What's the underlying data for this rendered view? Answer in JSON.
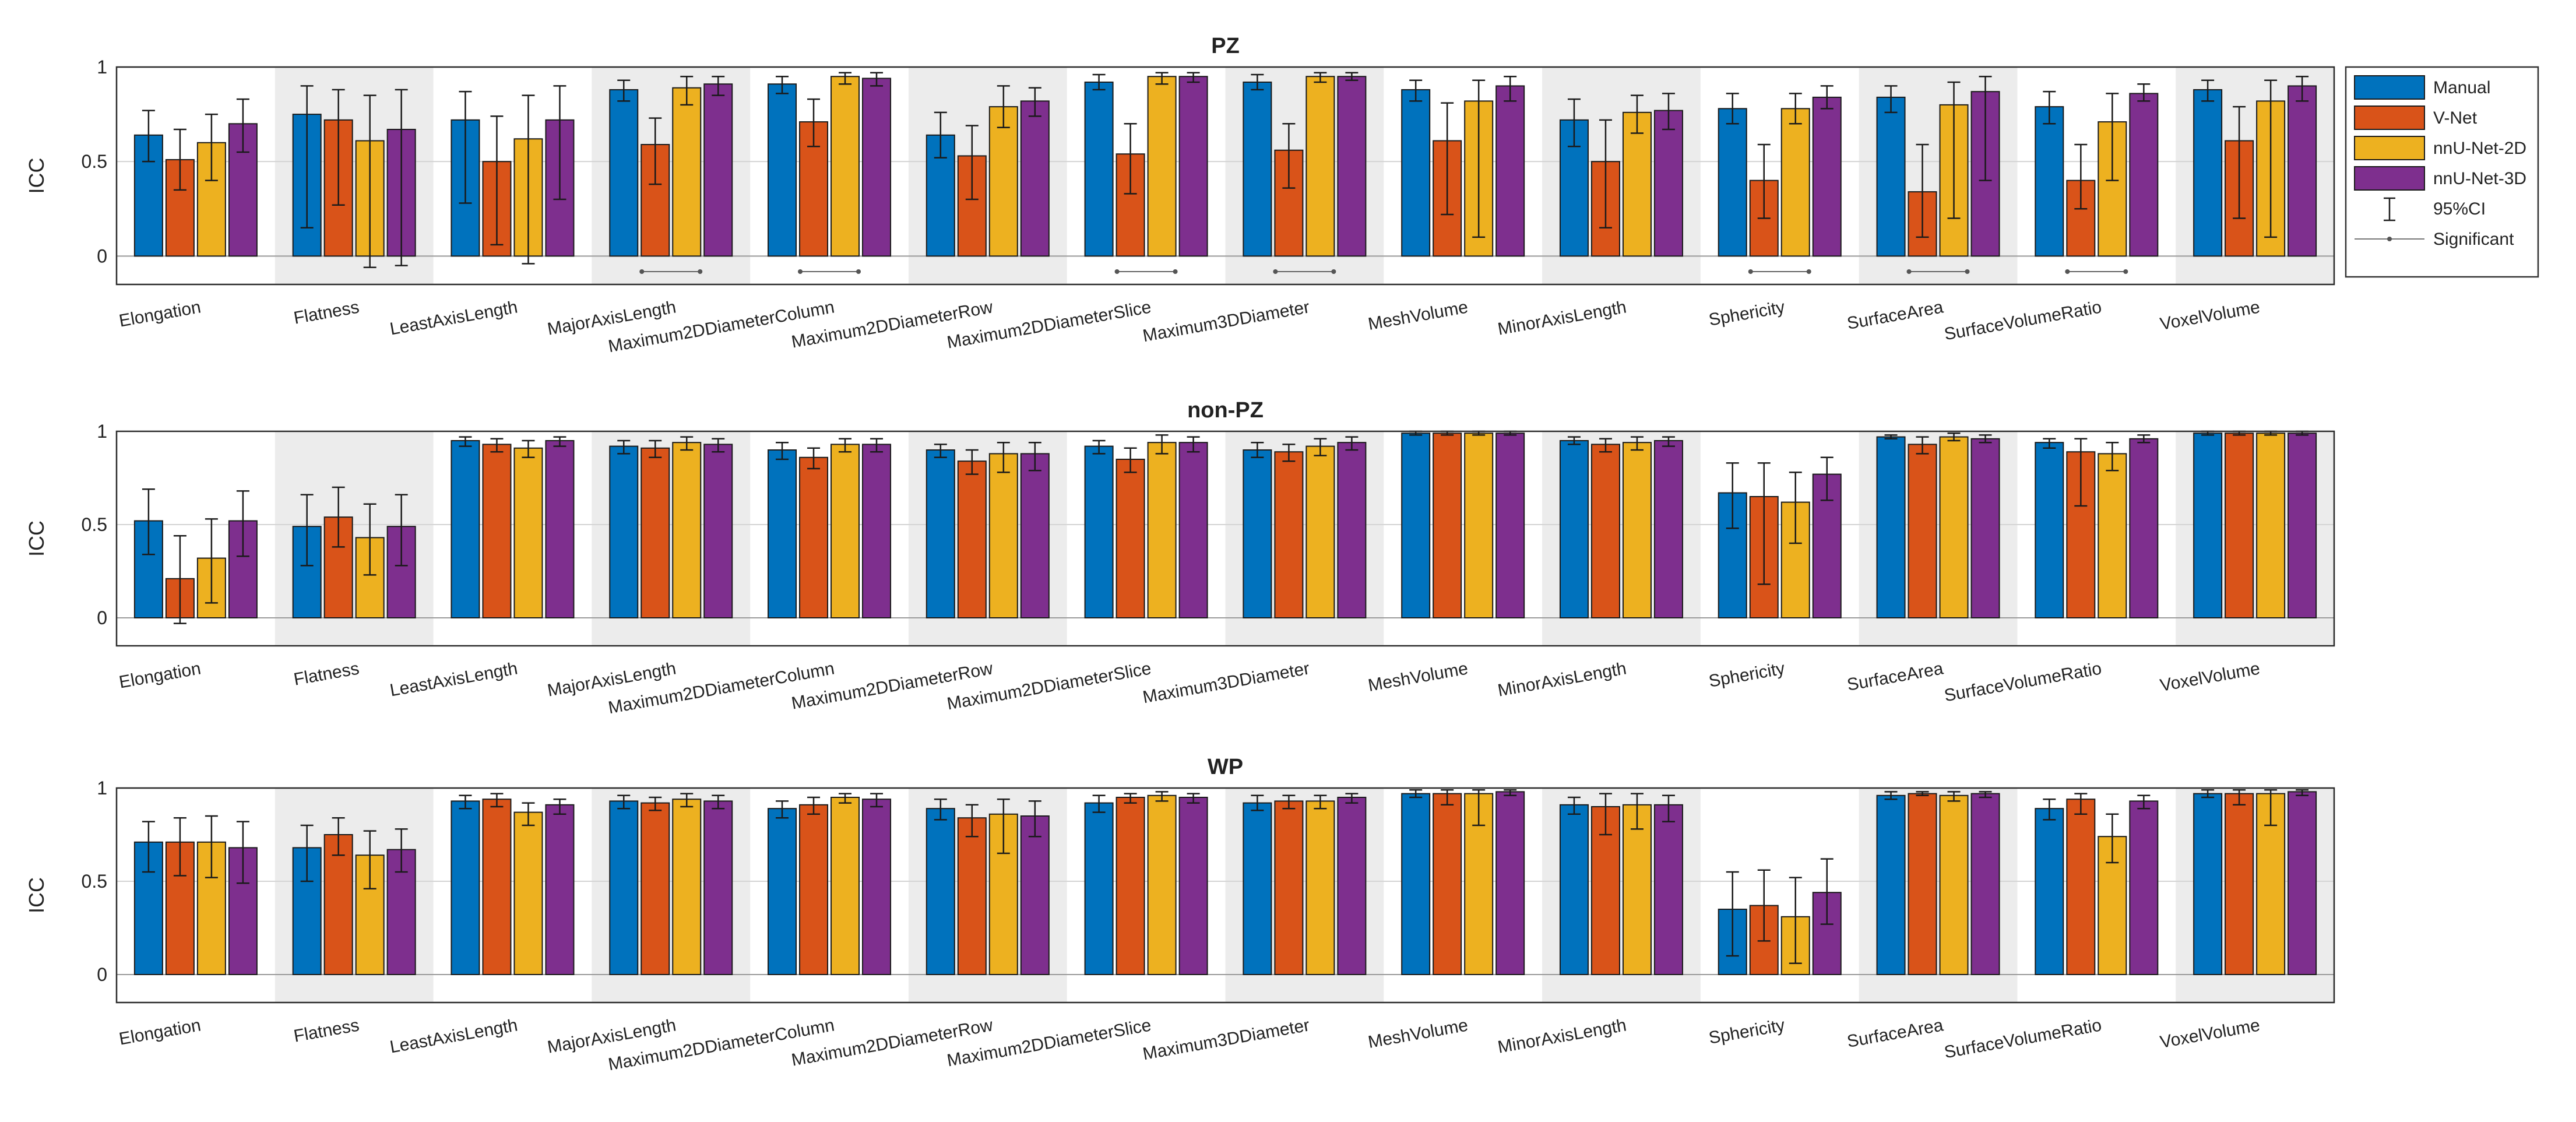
{
  "chart_data": [
    {
      "type": "bar",
      "title": "PZ",
      "ylabel": "ICC",
      "ylim": [
        -0.15,
        1
      ],
      "yticks": [
        "0",
        "0.5",
        "1"
      ],
      "categories": [
        "Elongation",
        "Flatness",
        "LeastAxisLength",
        "MajorAxisLength",
        "Maximum2DDiameterColumn",
        "Maximum2DDiameterRow",
        "Maximum2DDiameterSlice",
        "Maximum3DDiameter",
        "MeshVolume",
        "MinorAxisLength",
        "Sphericity",
        "SurfaceArea",
        "SurfaceVolumeRatio",
        "VoxelVolume"
      ],
      "series": [
        {
          "name": "Manual",
          "values": [
            0.64,
            0.75,
            0.72,
            0.88,
            0.91,
            0.64,
            0.92,
            0.92,
            0.88,
            0.72,
            0.78,
            0.84,
            0.79,
            0.88
          ],
          "ci_low": [
            0.5,
            0.15,
            0.28,
            0.82,
            0.86,
            0.52,
            0.88,
            0.88,
            0.82,
            0.58,
            0.7,
            0.76,
            0.7,
            0.82
          ],
          "ci_high": [
            0.77,
            0.9,
            0.87,
            0.93,
            0.95,
            0.76,
            0.96,
            0.96,
            0.93,
            0.83,
            0.86,
            0.9,
            0.87,
            0.93
          ]
        },
        {
          "name": "V-Net",
          "values": [
            0.51,
            0.72,
            0.5,
            0.59,
            0.71,
            0.53,
            0.54,
            0.56,
            0.61,
            0.5,
            0.4,
            0.34,
            0.4,
            0.61
          ],
          "ci_low": [
            0.35,
            0.27,
            0.06,
            0.38,
            0.58,
            0.3,
            0.33,
            0.36,
            0.22,
            0.15,
            0.2,
            0.1,
            0.25,
            0.2
          ],
          "ci_high": [
            0.67,
            0.88,
            0.74,
            0.73,
            0.83,
            0.69,
            0.7,
            0.7,
            0.81,
            0.72,
            0.59,
            0.59,
            0.59,
            0.79
          ]
        },
        {
          "name": "nnU-Net-2D",
          "values": [
            0.6,
            0.61,
            0.62,
            0.89,
            0.95,
            0.79,
            0.95,
            0.95,
            0.82,
            0.76,
            0.78,
            0.8,
            0.71,
            0.82
          ],
          "ci_low": [
            0.4,
            -0.06,
            -0.04,
            0.8,
            0.91,
            0.68,
            0.91,
            0.92,
            0.1,
            0.65,
            0.7,
            0.2,
            0.4,
            0.1
          ],
          "ci_high": [
            0.75,
            0.85,
            0.85,
            0.95,
            0.97,
            0.9,
            0.97,
            0.97,
            0.93,
            0.85,
            0.86,
            0.92,
            0.86,
            0.93
          ]
        },
        {
          "name": "nnU-Net-3D",
          "values": [
            0.7,
            0.67,
            0.72,
            0.91,
            0.94,
            0.82,
            0.95,
            0.95,
            0.9,
            0.77,
            0.84,
            0.87,
            0.86,
            0.9
          ],
          "ci_low": [
            0.55,
            -0.05,
            0.3,
            0.85,
            0.9,
            0.74,
            0.92,
            0.93,
            0.82,
            0.67,
            0.78,
            0.4,
            0.82,
            0.82
          ],
          "ci_high": [
            0.83,
            0.88,
            0.9,
            0.95,
            0.97,
            0.89,
            0.97,
            0.97,
            0.95,
            0.86,
            0.9,
            0.95,
            0.91,
            0.95
          ]
        }
      ],
      "significant": [
        3,
        4,
        6,
        7,
        10,
        11,
        12
      ]
    },
    {
      "type": "bar",
      "title": "non-PZ",
      "ylabel": "ICC",
      "ylim": [
        -0.15,
        1
      ],
      "yticks": [
        "0",
        "0.5",
        "1"
      ],
      "categories": [
        "Elongation",
        "Flatness",
        "LeastAxisLength",
        "MajorAxisLength",
        "Maximum2DDiameterColumn",
        "Maximum2DDiameterRow",
        "Maximum2DDiameterSlice",
        "Maximum3DDiameter",
        "MeshVolume",
        "MinorAxisLength",
        "Sphericity",
        "SurfaceArea",
        "SurfaceVolumeRatio",
        "VoxelVolume"
      ],
      "series": [
        {
          "name": "Manual",
          "values": [
            0.52,
            0.49,
            0.95,
            0.92,
            0.9,
            0.9,
            0.92,
            0.9,
            0.99,
            0.95,
            0.67,
            0.97,
            0.94,
            0.99
          ],
          "ci_low": [
            0.34,
            0.28,
            0.92,
            0.88,
            0.85,
            0.86,
            0.88,
            0.86,
            0.98,
            0.93,
            0.48,
            0.96,
            0.91,
            0.98
          ],
          "ci_high": [
            0.69,
            0.66,
            0.97,
            0.95,
            0.94,
            0.93,
            0.95,
            0.94,
            1.0,
            0.97,
            0.83,
            0.98,
            0.96,
            1.0
          ]
        },
        {
          "name": "V-Net",
          "values": [
            0.21,
            0.54,
            0.93,
            0.91,
            0.86,
            0.84,
            0.85,
            0.89,
            0.99,
            0.93,
            0.65,
            0.93,
            0.89,
            0.99
          ],
          "ci_low": [
            -0.03,
            0.38,
            0.89,
            0.86,
            0.8,
            0.77,
            0.78,
            0.84,
            0.98,
            0.89,
            0.18,
            0.88,
            0.6,
            0.98
          ],
          "ci_high": [
            0.44,
            0.7,
            0.96,
            0.95,
            0.91,
            0.9,
            0.91,
            0.93,
            1.0,
            0.96,
            0.83,
            0.97,
            0.96,
            1.0
          ]
        },
        {
          "name": "nnU-Net-2D",
          "values": [
            0.32,
            0.43,
            0.91,
            0.94,
            0.93,
            0.88,
            0.94,
            0.92,
            0.99,
            0.94,
            0.62,
            0.97,
            0.88,
            0.99
          ],
          "ci_low": [
            0.08,
            0.23,
            0.86,
            0.9,
            0.89,
            0.78,
            0.88,
            0.87,
            0.98,
            0.9,
            0.4,
            0.95,
            0.79,
            0.98
          ],
          "ci_high": [
            0.53,
            0.61,
            0.95,
            0.97,
            0.96,
            0.94,
            0.98,
            0.96,
            1.0,
            0.97,
            0.78,
            0.99,
            0.94,
            1.0
          ]
        },
        {
          "name": "nnU-Net-3D",
          "values": [
            0.52,
            0.49,
            0.95,
            0.93,
            0.93,
            0.88,
            0.94,
            0.94,
            0.99,
            0.95,
            0.77,
            0.96,
            0.96,
            0.99
          ],
          "ci_low": [
            0.33,
            0.28,
            0.92,
            0.89,
            0.89,
            0.79,
            0.89,
            0.9,
            0.98,
            0.92,
            0.63,
            0.94,
            0.94,
            0.98
          ],
          "ci_high": [
            0.68,
            0.66,
            0.97,
            0.96,
            0.96,
            0.94,
            0.97,
            0.97,
            1.0,
            0.97,
            0.86,
            0.98,
            0.98,
            1.0
          ]
        }
      ],
      "significant": []
    },
    {
      "type": "bar",
      "title": "WP",
      "ylabel": "ICC",
      "ylim": [
        -0.15,
        1
      ],
      "yticks": [
        "0",
        "0.5",
        "1"
      ],
      "categories": [
        "Elongation",
        "Flatness",
        "LeastAxisLength",
        "MajorAxisLength",
        "Maximum2DDiameterColumn",
        "Maximum2DDiameterRow",
        "Maximum2DDiameterSlice",
        "Maximum3DDiameter",
        "MeshVolume",
        "MinorAxisLength",
        "Sphericity",
        "SurfaceArea",
        "SurfaceVolumeRatio",
        "VoxelVolume"
      ],
      "series": [
        {
          "name": "Manual",
          "values": [
            0.71,
            0.68,
            0.93,
            0.93,
            0.89,
            0.89,
            0.92,
            0.92,
            0.97,
            0.91,
            0.35,
            0.96,
            0.89,
            0.97
          ],
          "ci_low": [
            0.55,
            0.5,
            0.89,
            0.89,
            0.84,
            0.83,
            0.87,
            0.88,
            0.95,
            0.86,
            0.1,
            0.94,
            0.83,
            0.95
          ],
          "ci_high": [
            0.82,
            0.8,
            0.96,
            0.96,
            0.93,
            0.94,
            0.96,
            0.96,
            0.99,
            0.95,
            0.55,
            0.98,
            0.94,
            0.99
          ]
        },
        {
          "name": "V-Net",
          "values": [
            0.71,
            0.75,
            0.94,
            0.92,
            0.91,
            0.84,
            0.95,
            0.93,
            0.97,
            0.9,
            0.37,
            0.97,
            0.94,
            0.97
          ],
          "ci_low": [
            0.53,
            0.64,
            0.9,
            0.88,
            0.86,
            0.74,
            0.92,
            0.89,
            0.91,
            0.75,
            0.18,
            0.96,
            0.86,
            0.91
          ],
          "ci_high": [
            0.84,
            0.84,
            0.97,
            0.95,
            0.95,
            0.91,
            0.97,
            0.96,
            0.99,
            0.97,
            0.56,
            0.98,
            0.97,
            0.99
          ]
        },
        {
          "name": "nnU-Net-2D",
          "values": [
            0.71,
            0.64,
            0.87,
            0.94,
            0.95,
            0.86,
            0.96,
            0.93,
            0.97,
            0.91,
            0.31,
            0.96,
            0.74,
            0.97
          ],
          "ci_low": [
            0.52,
            0.46,
            0.8,
            0.9,
            0.92,
            0.65,
            0.93,
            0.89,
            0.8,
            0.78,
            0.06,
            0.93,
            0.6,
            0.8
          ],
          "ci_high": [
            0.85,
            0.77,
            0.92,
            0.97,
            0.97,
            0.94,
            0.98,
            0.96,
            0.99,
            0.97,
            0.52,
            0.98,
            0.86,
            0.99
          ]
        },
        {
          "name": "nnU-Net-3D",
          "values": [
            0.68,
            0.67,
            0.91,
            0.93,
            0.94,
            0.85,
            0.95,
            0.95,
            0.98,
            0.91,
            0.44,
            0.97,
            0.93,
            0.98
          ],
          "ci_low": [
            0.49,
            0.55,
            0.86,
            0.89,
            0.9,
            0.74,
            0.92,
            0.92,
            0.96,
            0.82,
            0.27,
            0.95,
            0.89,
            0.96
          ],
          "ci_high": [
            0.82,
            0.78,
            0.94,
            0.96,
            0.97,
            0.93,
            0.97,
            0.97,
            0.99,
            0.96,
            0.62,
            0.98,
            0.96,
            0.99
          ]
        }
      ],
      "significant": []
    }
  ],
  "legend": {
    "items": [
      {
        "label": "Manual",
        "color": "#0072BD"
      },
      {
        "label": "V-Net",
        "color": "#D95319"
      },
      {
        "label": "nnU-Net-2D",
        "color": "#EDB120"
      },
      {
        "label": "nnU-Net-3D",
        "color": "#7E2F8E"
      }
    ],
    "ci_label": "95%CI",
    "significant_label": "Significant"
  }
}
